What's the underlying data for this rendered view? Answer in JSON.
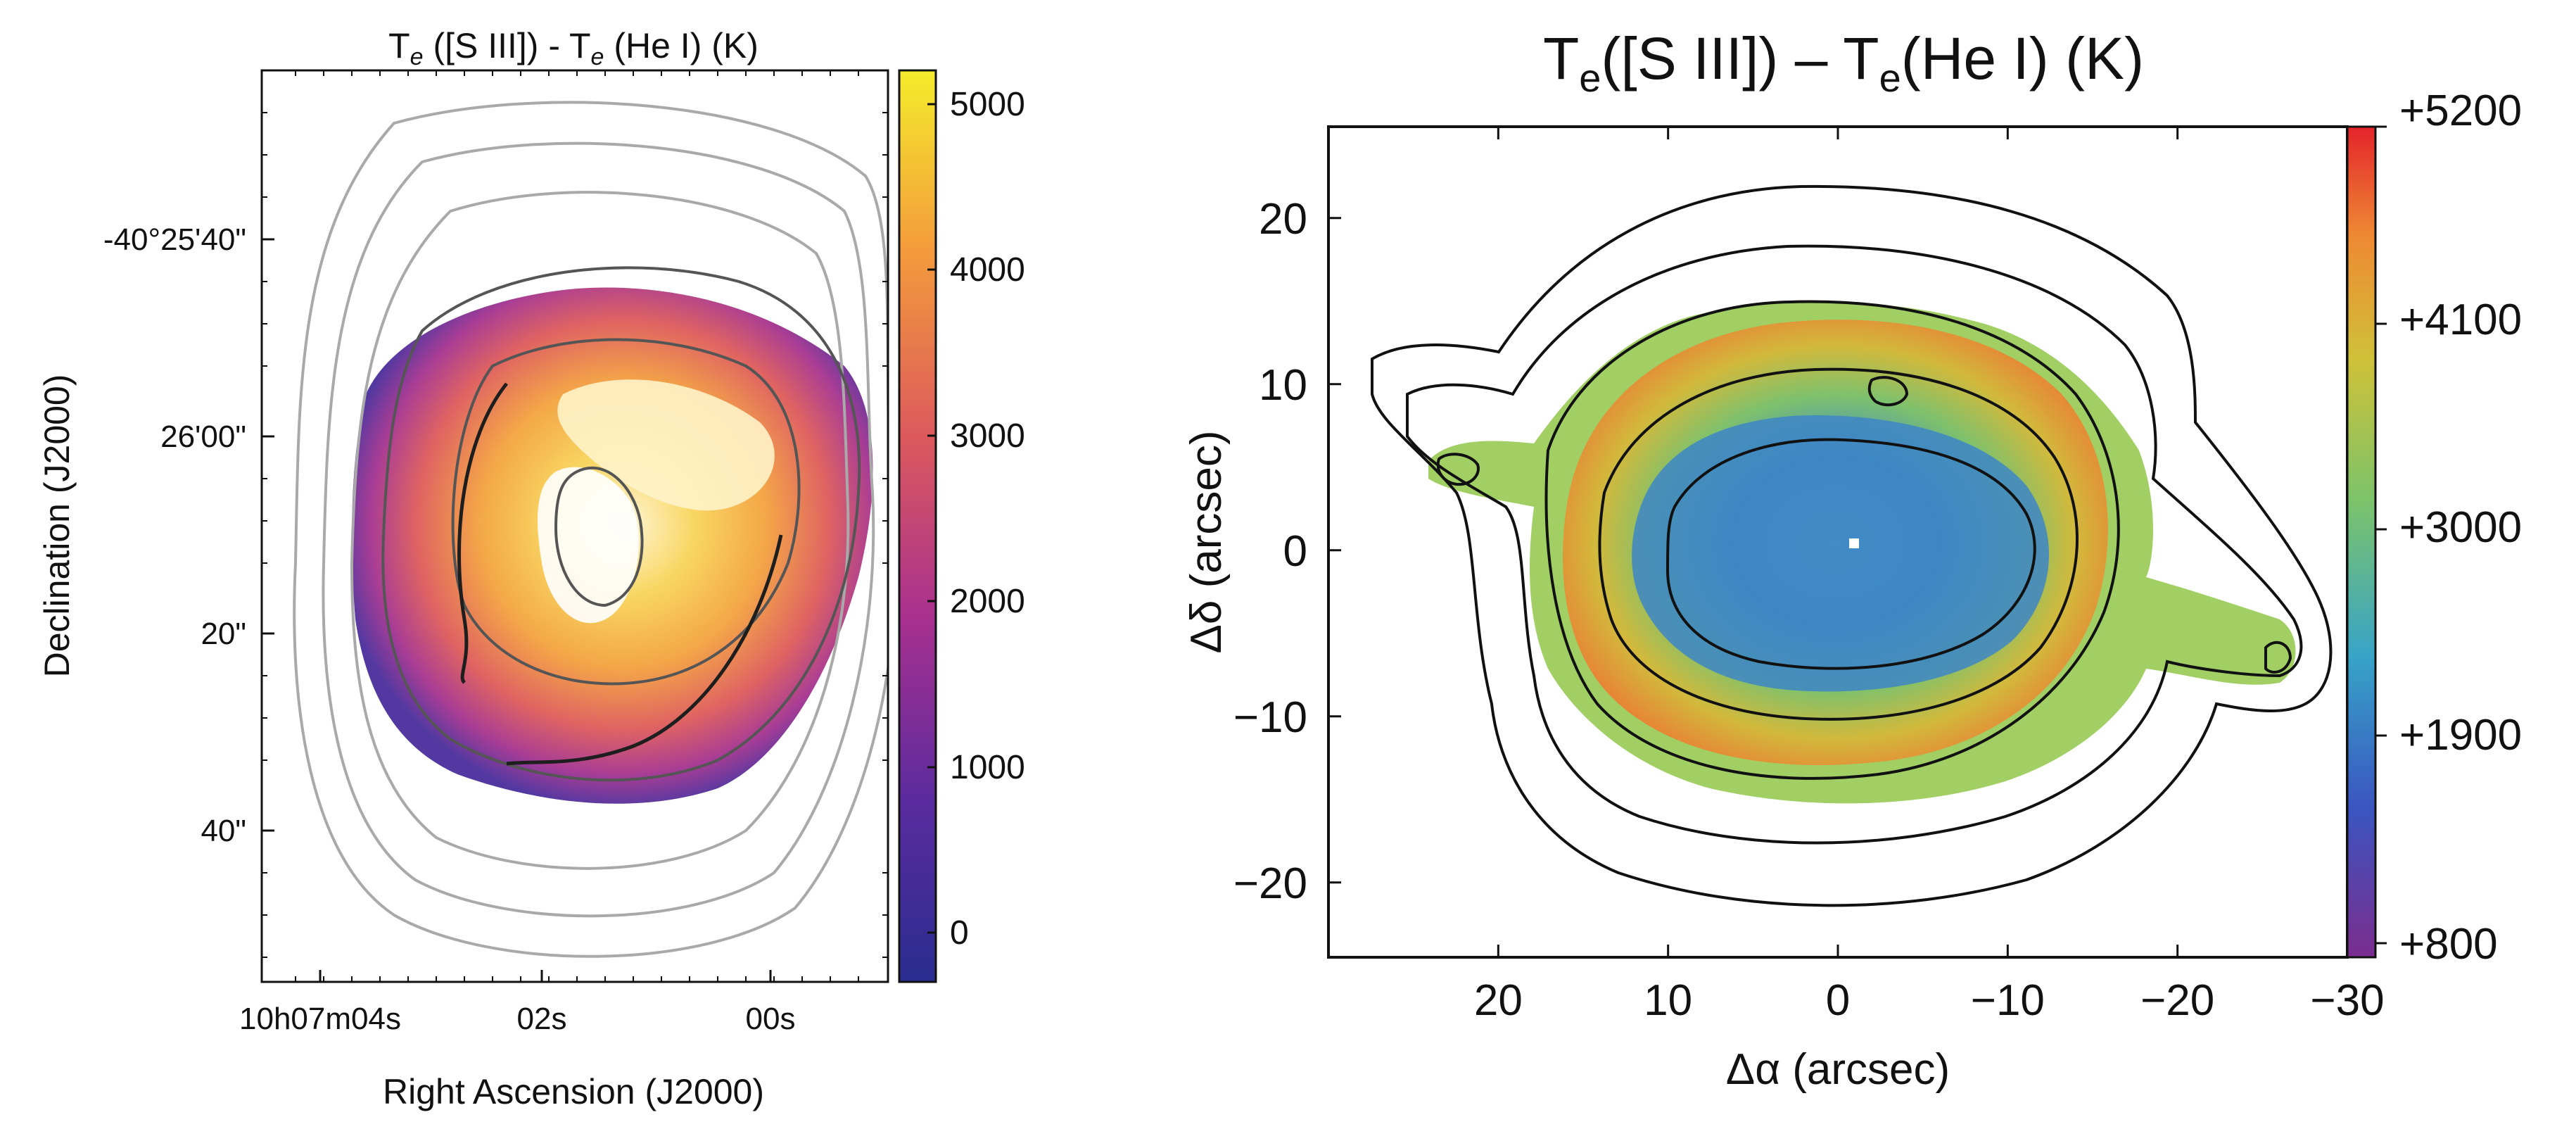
{
  "chart_data": [
    {
      "type": "heatmap",
      "panel": "left",
      "title": {
        "prefix": "T",
        "sub": "e",
        "mid": " ([S III]) -  T",
        "sub2": "e",
        "suffix": " (He I) (K)"
      },
      "xlabel": "Right Ascension (J2000)",
      "ylabel": "Declination (J2000)",
      "x_ticks": [
        "10h07m04s",
        "02s",
        "00s"
      ],
      "y_ticks": [
        "-40°25'40\"",
        "26'00\"",
        "20\"",
        "40\""
      ],
      "colorbar": {
        "ticks": [
          5000,
          4000,
          3000,
          2000,
          1000,
          0
        ],
        "range": [
          -250,
          5250
        ],
        "colormap": "plasma"
      }
    },
    {
      "type": "heatmap",
      "panel": "right",
      "title": {
        "prefix": "T",
        "sub": "e",
        "mid": "([S III]) – T",
        "sub2": "e",
        "suffix": "(He I) (K)"
      },
      "xlabel": "Δα (arcsec)",
      "ylabel": "Δδ (arcsec)",
      "x_ticks": [
        20,
        10,
        0,
        -10,
        -20,
        -30
      ],
      "xlim": [
        30,
        -30
      ],
      "y_ticks": [
        20,
        10,
        0,
        -10,
        -20
      ],
      "ylim": [
        -24.5,
        25.5
      ],
      "colorbar": {
        "ticks": [
          "+5200",
          "+4100",
          "+3000",
          "+1900",
          "+800"
        ],
        "range": [
          800,
          5200
        ],
        "colormap": "spectral"
      }
    }
  ]
}
